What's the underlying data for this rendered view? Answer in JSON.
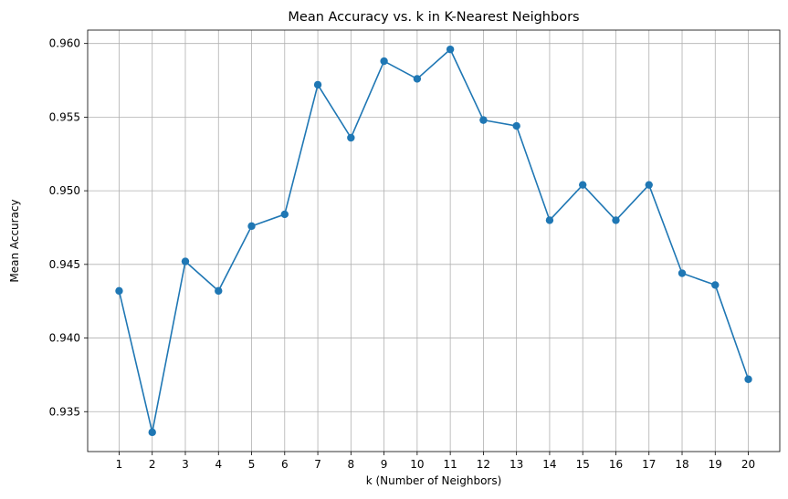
{
  "chart_data": {
    "type": "line",
    "title": "Mean Accuracy vs. k in K-Nearest Neighbors",
    "xlabel": "k (Number of Neighbors)",
    "ylabel": "Mean Accuracy",
    "x": [
      1,
      2,
      3,
      4,
      5,
      6,
      7,
      8,
      9,
      10,
      11,
      12,
      13,
      14,
      15,
      16,
      17,
      18,
      19,
      20
    ],
    "series": [
      {
        "values": [
          0.9432,
          0.9336,
          0.9452,
          0.9432,
          0.9476,
          0.9484,
          0.9572,
          0.9536,
          0.9588,
          0.9576,
          0.9596,
          0.9548,
          0.9544,
          0.948,
          0.9504,
          0.948,
          0.9504,
          0.9444,
          0.9436,
          0.9372
        ],
        "color": "#1f77b4",
        "marker": "circle"
      }
    ],
    "xticks": [
      "1",
      "2",
      "3",
      "4",
      "5",
      "6",
      "7",
      "8",
      "9",
      "10",
      "11",
      "12",
      "13",
      "14",
      "15",
      "16",
      "17",
      "18",
      "19",
      "20"
    ],
    "yticks": [
      "0.935",
      "0.940",
      "0.945",
      "0.950",
      "0.955",
      "0.960"
    ],
    "ytick_values": [
      0.935,
      0.94,
      0.945,
      0.95,
      0.955,
      0.96
    ],
    "xlim": [
      0.05,
      20.95
    ],
    "ylim": [
      0.93229,
      0.96091
    ],
    "grid": true
  }
}
